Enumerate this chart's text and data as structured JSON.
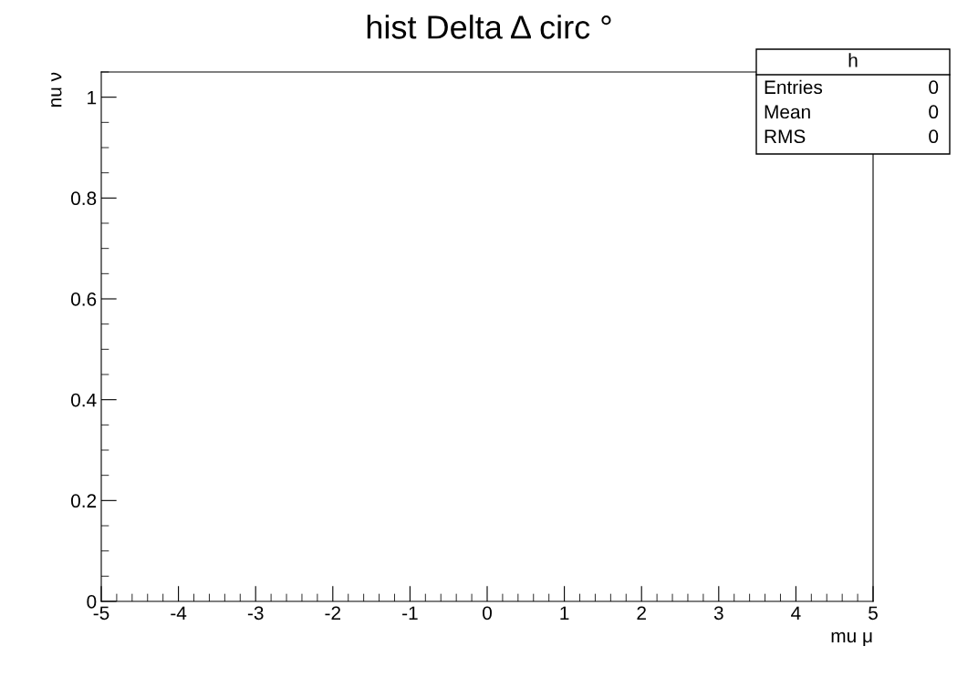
{
  "chart_data": {
    "type": "histogram",
    "title": "hist Delta Δ circ °",
    "xlabel": "mu μ",
    "ylabel": "nu ν",
    "xlim": [
      -5,
      5
    ],
    "xticks": [
      -5,
      -4,
      -3,
      -2,
      -1,
      0,
      1,
      2,
      3,
      4,
      5
    ],
    "ylim": [
      0,
      1.05
    ],
    "yticks": [
      0,
      0.2,
      0.4,
      0.6,
      0.8,
      1
    ],
    "annotations": [
      "h",
      "Entries",
      "0",
      "Mean",
      "0",
      "RMS",
      "0"
    ],
    "grid": false
  }
}
